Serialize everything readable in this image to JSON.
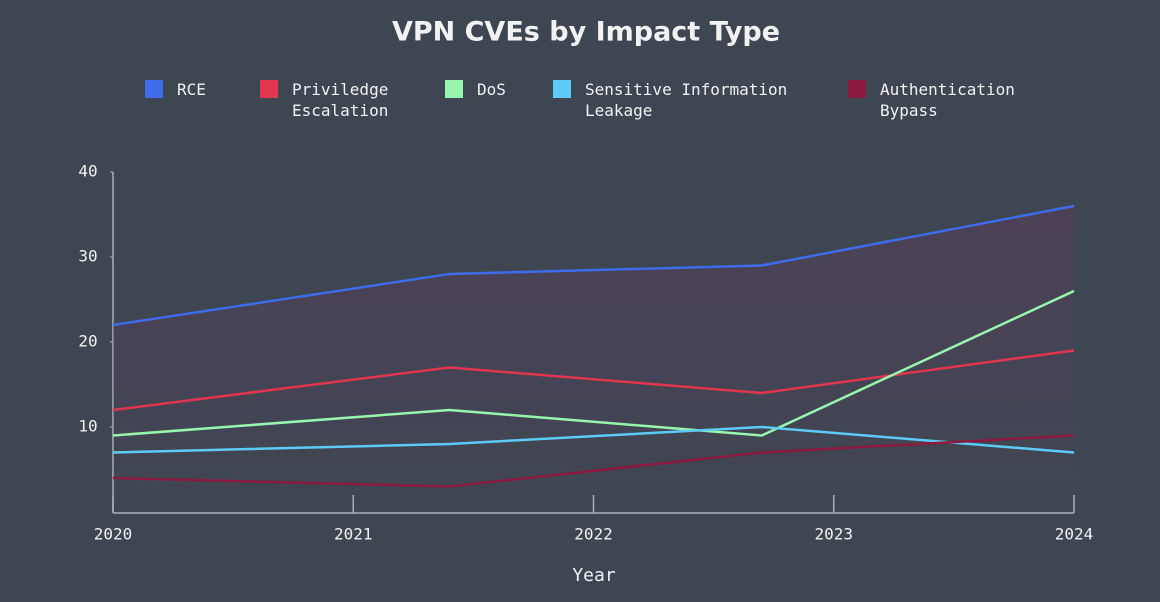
{
  "chart_data": {
    "type": "line",
    "title": "VPN CVEs by Impact Type",
    "x": [
      2020,
      2021.4,
      2022.7,
      2024
    ],
    "series": [
      {
        "name": "RCE",
        "color": "#3f6cea",
        "values": [
          22,
          28,
          29,
          36
        ],
        "area_fill": true
      },
      {
        "name": "Priviledge Escalation",
        "color": "#e0364f",
        "values": [
          12,
          17,
          14,
          19
        ]
      },
      {
        "name": "DoS",
        "color": "#98f5b0",
        "values": [
          9,
          12,
          9,
          26
        ]
      },
      {
        "name": "Sensitive Information Leakage",
        "color": "#5ccbf5",
        "values": [
          7,
          8,
          10,
          7
        ]
      },
      {
        "name": "Authentication Bypass",
        "color": "#8c1a40",
        "values": [
          4,
          3,
          7,
          9
        ]
      }
    ],
    "xlim": [
      2020,
      2024
    ],
    "xticks": [
      2020,
      2021,
      2022,
      2023,
      2024
    ],
    "ylim": [
      0,
      40
    ],
    "yticks": [
      10,
      20,
      30,
      40
    ],
    "x_label": "Year",
    "grid": false,
    "legend": "top"
  }
}
